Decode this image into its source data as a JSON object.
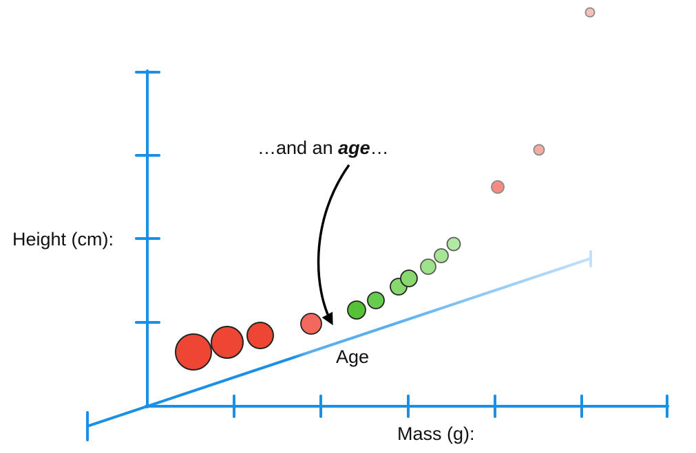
{
  "labels": {
    "y_axis": "Height (cm):",
    "x_axis": "Mass (g):",
    "z_axis": "Age"
  },
  "annotation": {
    "prefix": "…and an ",
    "emphasis": "age",
    "suffix": "…"
  },
  "colors": {
    "axis": "#1a8fe6",
    "axis_fade": "#b9dcf7",
    "young_point": "#f0463a",
    "middle_point": "#66cc4d",
    "old_point": "#f29c95",
    "arrow": "#000000"
  },
  "points": [
    {
      "group": "young",
      "color": "#ee4634",
      "opacity": 1.0
    },
    {
      "group": "young",
      "color": "#ee4634",
      "opacity": 1.0
    },
    {
      "group": "young",
      "color": "#ee4634",
      "opacity": 1.0
    },
    {
      "group": "young",
      "color": "#f3685c",
      "opacity": 1.0
    },
    {
      "group": "middle",
      "color": "#55c236",
      "opacity": 1.0
    },
    {
      "group": "middle",
      "color": "#66cc4d",
      "opacity": 1.0
    },
    {
      "group": "middle",
      "color": "#86d86f",
      "opacity": 1.0
    },
    {
      "group": "middle",
      "color": "#86d86f",
      "opacity": 1.0
    },
    {
      "group": "middle",
      "color": "#9de28a",
      "opacity": 1.0
    },
    {
      "group": "middle",
      "color": "#a6e594",
      "opacity": 1.0
    },
    {
      "group": "middle",
      "color": "#b2e9a2",
      "opacity": 1.0
    },
    {
      "group": "old",
      "color": "#f48a82",
      "opacity": 1.0
    },
    {
      "group": "old",
      "color": "#f6aaa4",
      "opacity": 1.0
    },
    {
      "group": "old",
      "color": "#f8c0bb",
      "opacity": 1.0
    }
  ]
}
